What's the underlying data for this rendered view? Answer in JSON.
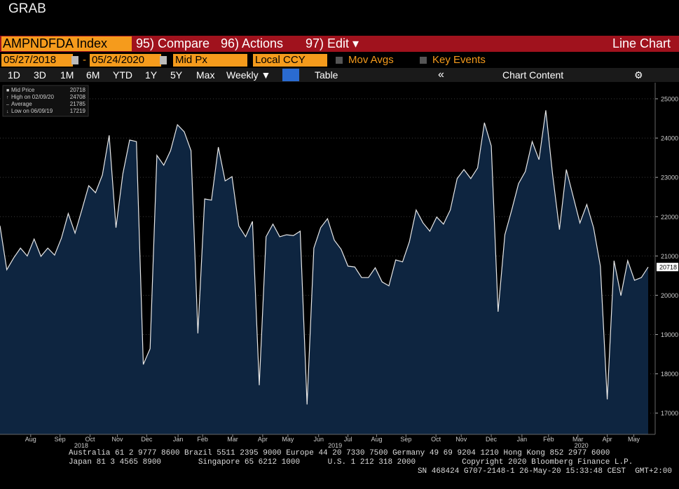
{
  "header": {
    "title": "GRAB"
  },
  "toolbar": {
    "security": "AMPNDFDA Index",
    "menus": [
      "95) Compare",
      "96) Actions",
      "97) Edit ▾"
    ],
    "view": "Line Chart"
  },
  "controls": {
    "start_date": "05/27/2018",
    "separator": "-",
    "end_date": "05/24/2020",
    "field": "Mid Px",
    "currency": "Local CCY",
    "options": [
      "Mov Avgs",
      "Key Events"
    ]
  },
  "ranges": [
    "1D",
    "3D",
    "1M",
    "6M",
    "YTD",
    "1Y",
    "5Y",
    "Max"
  ],
  "frequency": "Weekly ▼",
  "table_button": "Table",
  "chart_content": "Chart Content",
  "chart_data": {
    "type": "area",
    "legend": {
      "mid_label": "Mid Price",
      "high_label": "High on 02/09/20",
      "average_label": "Average",
      "average": 21785,
      "low_label": "Low on 06/09/19"
    },
    "series": [
      {
        "name": "Mid Price",
        "color": "#e8e8e8",
        "fill": "#0e2540",
        "values": [
          21770,
          20650,
          20950,
          21200,
          21000,
          21430,
          20990,
          21200,
          21020,
          21450,
          22080,
          21580,
          22170,
          22790,
          22610,
          23060,
          24070,
          21720,
          23090,
          23950,
          23910,
          18240,
          18640,
          23560,
          23310,
          23680,
          24340,
          24160,
          23680,
          19030,
          22450,
          22420,
          23770,
          22910,
          23020,
          21760,
          21490,
          21880,
          17710,
          21490,
          21810,
          21490,
          21540,
          21520,
          21630,
          17219,
          21200,
          21720,
          21950,
          21400,
          21170,
          20740,
          20720,
          20450,
          20450,
          20700,
          20340,
          20240,
          20900,
          20850,
          21360,
          22170,
          21840,
          21630,
          21990,
          21810,
          22170,
          22970,
          23200,
          22970,
          23240,
          24390,
          23800,
          19580,
          21540,
          22170,
          22840,
          23150,
          23910,
          23450,
          24708,
          23060,
          21670,
          23200,
          22520,
          21840,
          22310,
          21720,
          20740,
          17350,
          20880,
          19990,
          20880,
          20380,
          20450,
          20718
        ]
      }
    ],
    "xlim": [
      0,
      95
    ],
    "xticks": [
      {
        "value": 4.5,
        "label": "Aug"
      },
      {
        "value": 8.8,
        "label": "Sep"
      },
      {
        "value": 13.2,
        "label": "Oct"
      },
      {
        "value": 17.2,
        "label": "Nov"
      },
      {
        "value": 21.5,
        "label": "Dec"
      },
      {
        "value": 26.1,
        "label": "Jan"
      },
      {
        "value": 29.7,
        "label": "Feb"
      },
      {
        "value": 34.1,
        "label": "Mar"
      },
      {
        "value": 38.5,
        "label": "Apr"
      },
      {
        "value": 42.2,
        "label": "May"
      },
      {
        "value": 46.7,
        "label": "Jun"
      },
      {
        "value": 51.0,
        "label": "Jul"
      },
      {
        "value": 55.2,
        "label": "Aug"
      },
      {
        "value": 59.5,
        "label": "Sep"
      },
      {
        "value": 63.9,
        "label": "Oct"
      },
      {
        "value": 67.6,
        "label": "Nov"
      },
      {
        "value": 72.0,
        "label": "Dec"
      },
      {
        "value": 76.5,
        "label": "Jan"
      },
      {
        "value": 80.4,
        "label": "Feb"
      },
      {
        "value": 84.7,
        "label": "Mar"
      },
      {
        "value": 89.0,
        "label": "Apr"
      },
      {
        "value": 92.9,
        "label": "May"
      }
    ],
    "year_labels": [
      {
        "value": 11.9,
        "label": "2018"
      },
      {
        "value": 49.1,
        "label": "2019"
      },
      {
        "value": 85.2,
        "label": "2020"
      }
    ],
    "ylim": [
      16460,
      25410
    ],
    "yticks": [
      17000,
      18000,
      19000,
      20000,
      21000,
      22000,
      23000,
      24000,
      25000
    ],
    "grid": true
  },
  "footer": {
    "lines": [
      "Australia 61 2 9777 8600 Brazil 5511 2395 9000 Europe 44 20 7330 7500 Germany 49 69 9204 1210 Hong Kong 852 2977 6000",
      "Japan 81 3 4565 8900        Singapore 65 6212 1000      U.S. 1 212 318 2000          Copyright 2020 Bloomberg Finance L.P.",
      "SN 468424 G707-2148-1 26-May-20 15:33:48 CEST  GMT+2:00"
    ]
  }
}
